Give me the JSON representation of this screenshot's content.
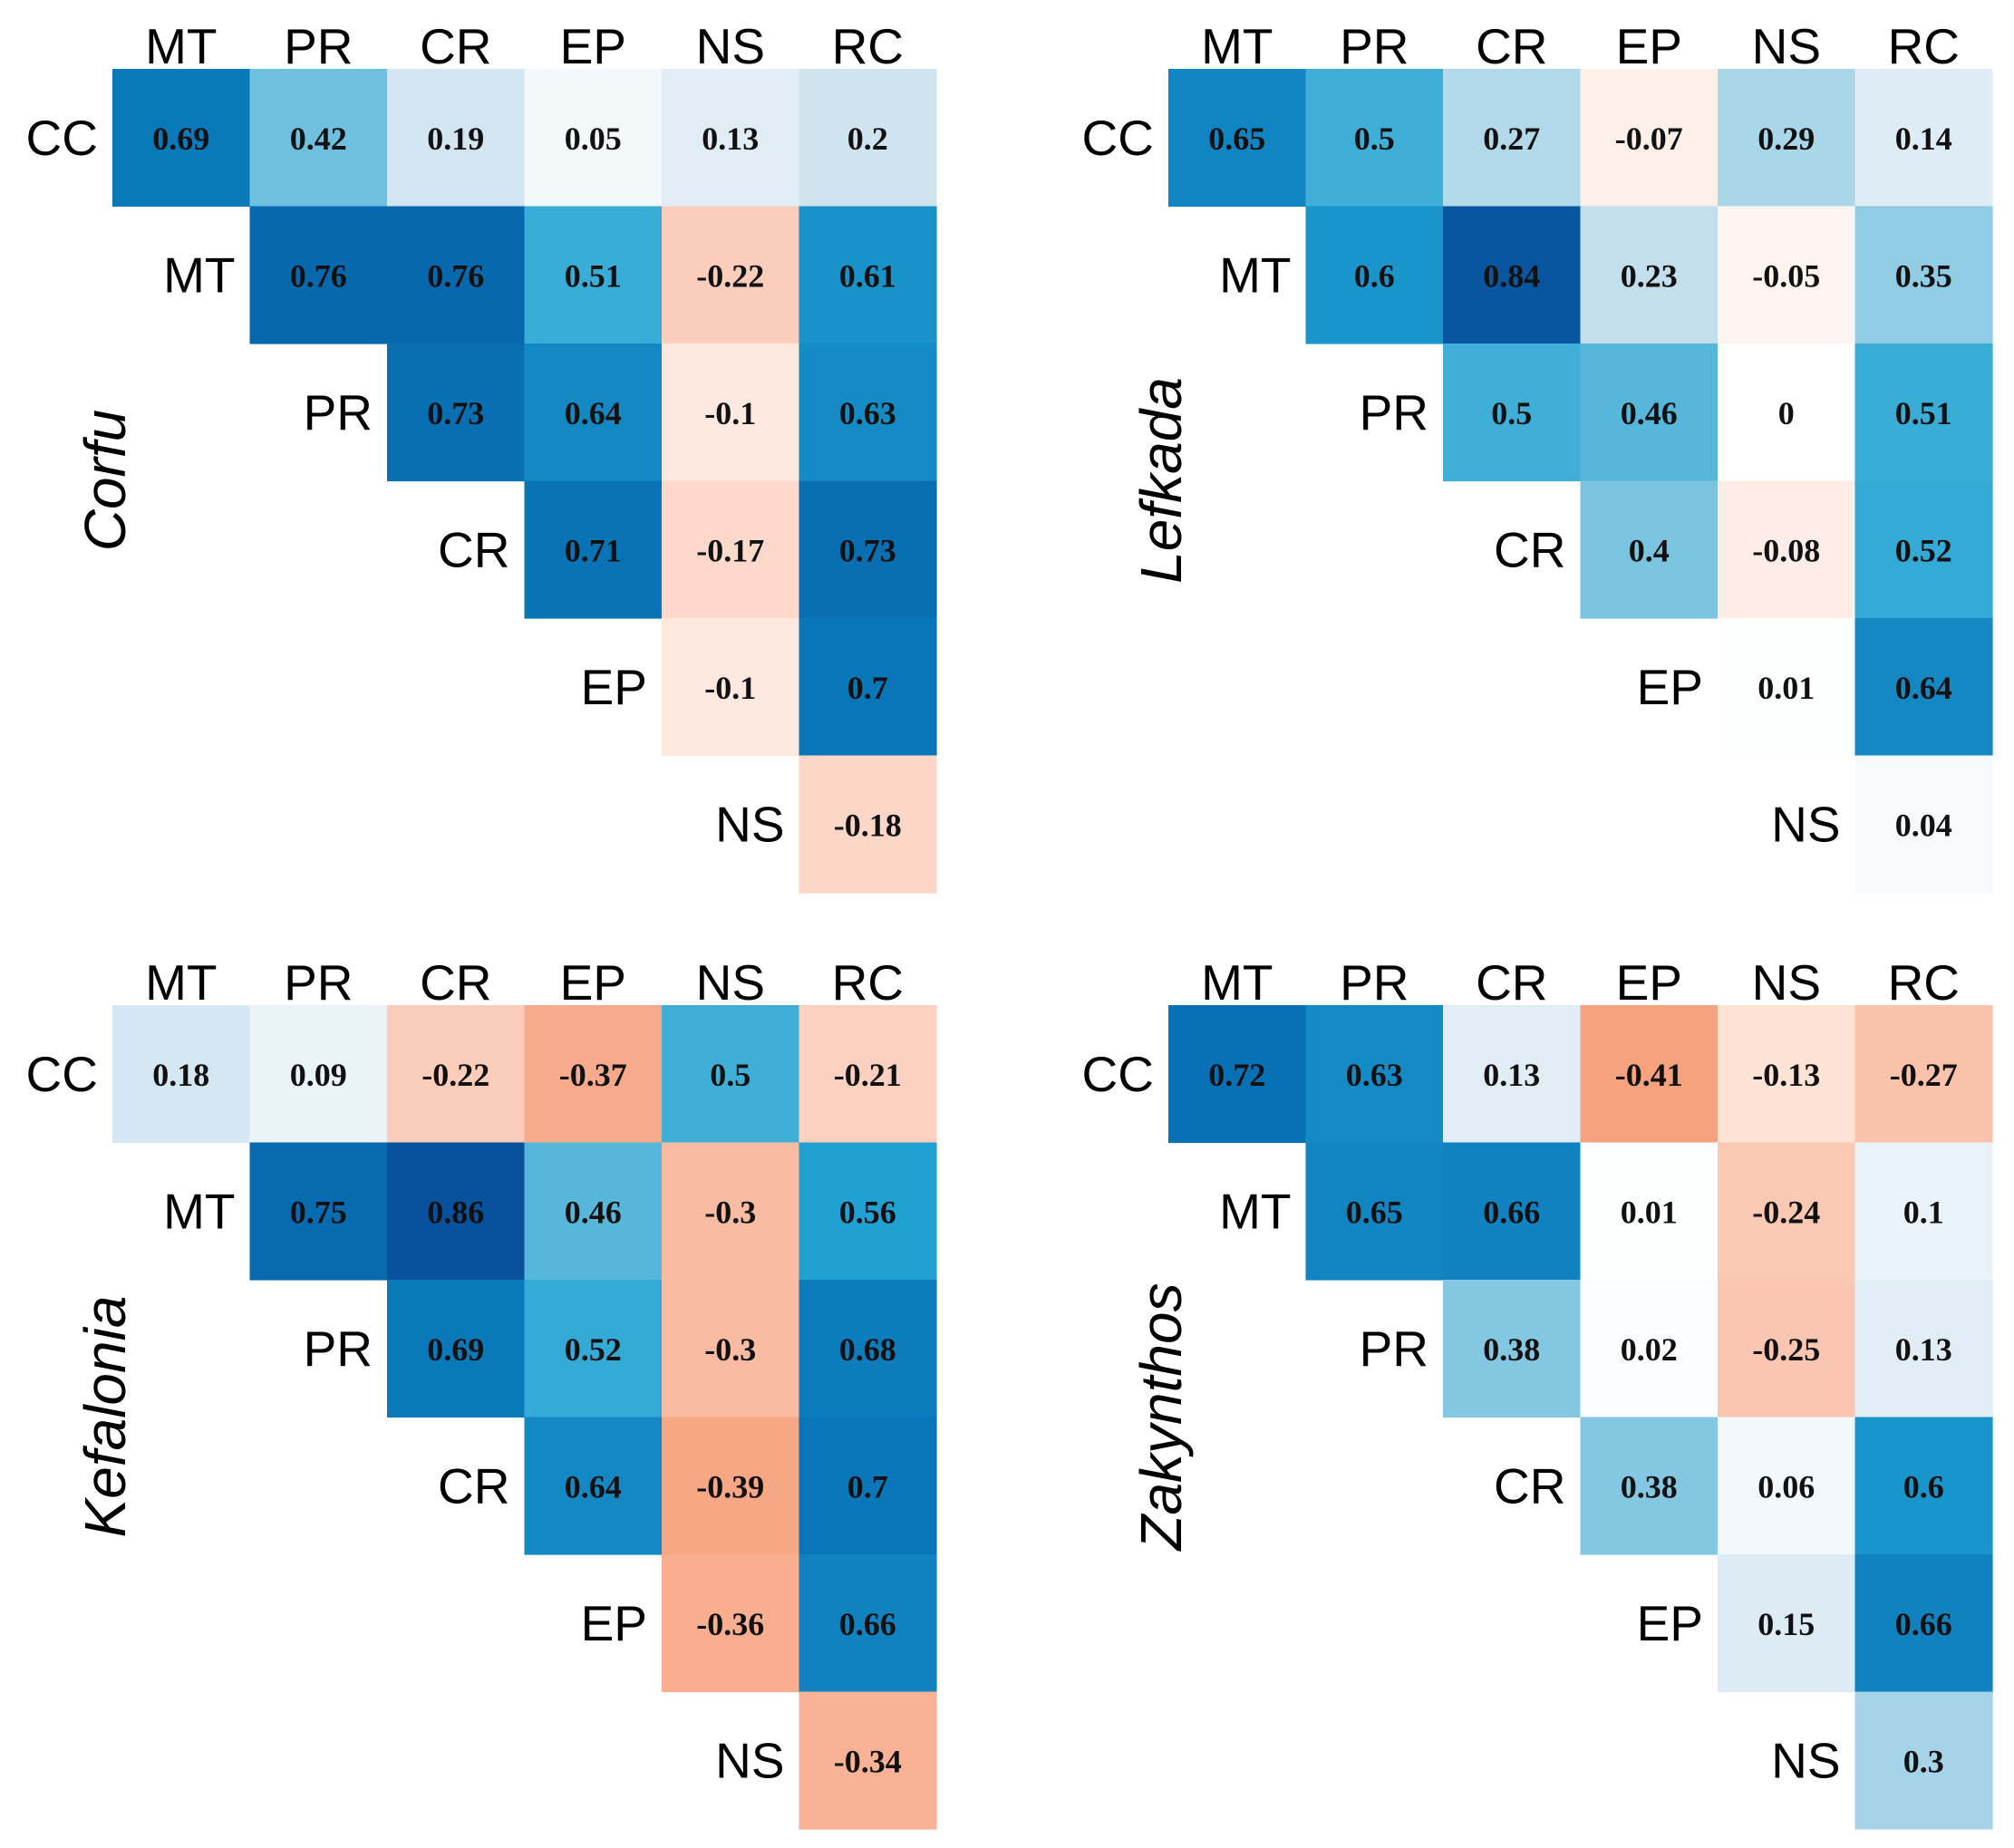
{
  "chart_data": [
    {
      "type": "heatmap",
      "title": "Corfu",
      "columns": [
        "MT",
        "PR",
        "CR",
        "EP",
        "NS",
        "RC"
      ],
      "rows": [
        "CC",
        "MT",
        "PR",
        "CR",
        "EP",
        "NS"
      ],
      "values": [
        [
          0.69,
          0.42,
          0.19,
          0.05,
          0.13,
          0.2
        ],
        [
          null,
          0.76,
          0.76,
          0.51,
          -0.22,
          0.61
        ],
        [
          null,
          null,
          0.73,
          0.64,
          -0.1,
          0.63
        ],
        [
          null,
          null,
          null,
          0.71,
          -0.17,
          0.73
        ],
        [
          null,
          null,
          null,
          null,
          -0.1,
          0.7
        ],
        [
          null,
          null,
          null,
          null,
          null,
          -0.18
        ]
      ],
      "value_labels": [
        [
          "0.69",
          "0.42",
          "0.19",
          "0.05",
          "0.13",
          "0.2"
        ],
        [
          "",
          "0.76",
          "0.76",
          "0.51",
          "-0.22",
          "0.61"
        ],
        [
          "",
          "",
          "0.73",
          "0.64",
          "-0.1",
          "0.63"
        ],
        [
          "",
          "",
          "",
          "0.71",
          "-0.17",
          "0.73"
        ],
        [
          "",
          "",
          "",
          "",
          "-0.1",
          "0.7"
        ],
        [
          "",
          "",
          "",
          "",
          "",
          "-0.18"
        ]
      ]
    },
    {
      "type": "heatmap",
      "title": "Lefkada",
      "columns": [
        "MT",
        "PR",
        "CR",
        "EP",
        "NS",
        "RC"
      ],
      "rows": [
        "CC",
        "MT",
        "PR",
        "CR",
        "EP",
        "NS"
      ],
      "values": [
        [
          0.65,
          0.5,
          0.27,
          -0.07,
          0.29,
          0.14
        ],
        [
          null,
          0.6,
          0.84,
          0.23,
          -0.05,
          0.35
        ],
        [
          null,
          null,
          0.5,
          0.46,
          0,
          0.51
        ],
        [
          null,
          null,
          null,
          0.4,
          -0.08,
          0.52
        ],
        [
          null,
          null,
          null,
          null,
          0.01,
          0.64
        ],
        [
          null,
          null,
          null,
          null,
          null,
          0.04
        ]
      ],
      "value_labels": [
        [
          "0.65",
          "0.5",
          "0.27",
          "-0.07",
          "0.29",
          "0.14"
        ],
        [
          "",
          "0.6",
          "0.84",
          "0.23",
          "-0.05",
          "0.35"
        ],
        [
          "",
          "",
          "0.5",
          "0.46",
          "0",
          "0.51"
        ],
        [
          "",
          "",
          "",
          "0.4",
          "-0.08",
          "0.52"
        ],
        [
          "",
          "",
          "",
          "",
          "0.01",
          "0.64"
        ],
        [
          "",
          "",
          "",
          "",
          "",
          "0.04"
        ]
      ]
    },
    {
      "type": "heatmap",
      "title": "Kefalonia",
      "columns": [
        "MT",
        "PR",
        "CR",
        "EP",
        "NS",
        "RC"
      ],
      "rows": [
        "CC",
        "MT",
        "PR",
        "CR",
        "EP",
        "NS"
      ],
      "values": [
        [
          0.18,
          0.09,
          -0.22,
          -0.37,
          0.5,
          -0.21
        ],
        [
          null,
          0.75,
          0.86,
          0.46,
          -0.3,
          0.56
        ],
        [
          null,
          null,
          0.69,
          0.52,
          -0.3,
          0.68
        ],
        [
          null,
          null,
          null,
          0.64,
          -0.39,
          0.7
        ],
        [
          null,
          null,
          null,
          null,
          -0.36,
          0.66
        ],
        [
          null,
          null,
          null,
          null,
          null,
          -0.34
        ]
      ],
      "value_labels": [
        [
          "0.18",
          "0.09",
          "-0.22",
          "-0.37",
          "0.5",
          "-0.21"
        ],
        [
          "",
          "0.75",
          "0.86",
          "0.46",
          "-0.3",
          "0.56"
        ],
        [
          "",
          "",
          "0.69",
          "0.52",
          "-0.3",
          "0.68"
        ],
        [
          "",
          "",
          "",
          "0.64",
          "-0.39",
          "0.7"
        ],
        [
          "",
          "",
          "",
          "",
          "-0.36",
          "0.66"
        ],
        [
          "",
          "",
          "",
          "",
          "",
          "-0.34"
        ]
      ]
    },
    {
      "type": "heatmap",
      "title": "Zakynthos",
      "columns": [
        "MT",
        "PR",
        "CR",
        "EP",
        "NS",
        "RC"
      ],
      "rows": [
        "CC",
        "MT",
        "PR",
        "CR",
        "EP",
        "NS"
      ],
      "values": [
        [
          0.72,
          0.63,
          0.13,
          -0.41,
          -0.13,
          -0.27
        ],
        [
          null,
          0.65,
          0.66,
          0.01,
          -0.24,
          0.1
        ],
        [
          null,
          null,
          0.38,
          0.02,
          -0.25,
          0.13
        ],
        [
          null,
          null,
          null,
          0.38,
          0.06,
          0.6
        ],
        [
          null,
          null,
          null,
          null,
          0.15,
          0.66
        ],
        [
          null,
          null,
          null,
          null,
          null,
          0.3
        ]
      ],
      "value_labels": [
        [
          "0.72",
          "0.63",
          "0.13",
          "-0.41",
          "-0.13",
          "-0.27"
        ],
        [
          "",
          "0.65",
          "0.66",
          "0.01",
          "-0.24",
          "0.1"
        ],
        [
          "",
          "",
          "0.38",
          "0.02",
          "-0.25",
          "0.13"
        ],
        [
          "",
          "",
          "",
          "0.38",
          "0.06",
          "0.6"
        ],
        [
          "",
          "",
          "",
          "",
          "0.15",
          "0.66"
        ],
        [
          "",
          "",
          "",
          "",
          "",
          "0.3"
        ]
      ]
    }
  ],
  "colors": {
    "positive_strong": "#08519c",
    "positive_mid": "#1f9fd1",
    "negative_strong": "#f7a07c",
    "neutral": "#ffffff"
  }
}
